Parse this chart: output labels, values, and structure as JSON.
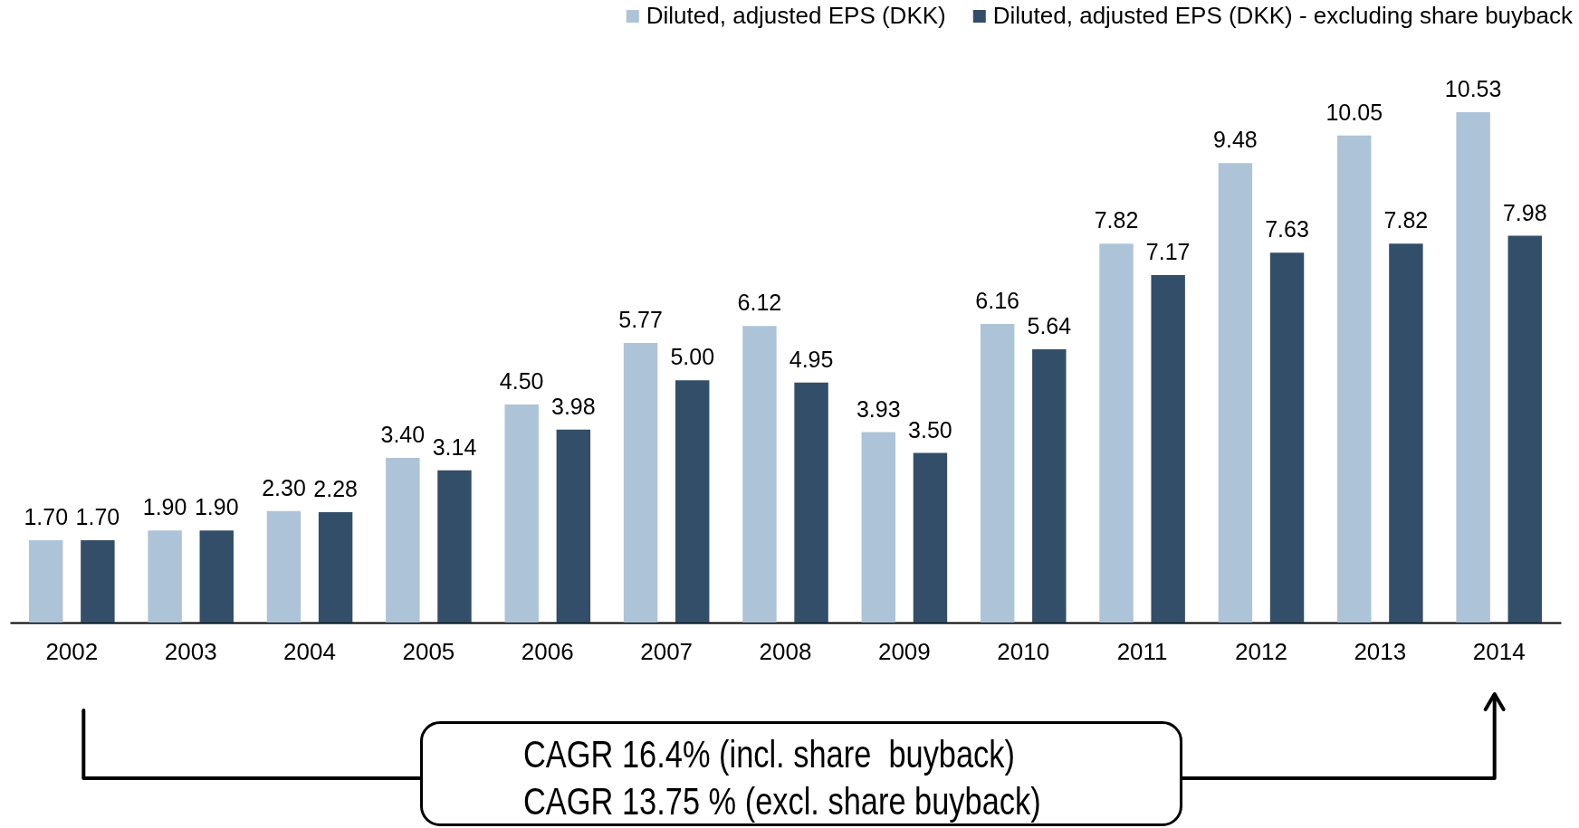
{
  "chart_data": {
    "type": "bar",
    "categories": [
      "2002",
      "2003",
      "2004",
      "2005",
      "2006",
      "2007",
      "2008",
      "2009",
      "2010",
      "2011",
      "2012",
      "2013",
      "2014"
    ],
    "series": [
      {
        "name": "Diluted, adjusted EPS (DKK)",
        "color": "#adc3d8",
        "values": [
          1.7,
          1.9,
          2.3,
          3.4,
          4.5,
          5.77,
          6.12,
          3.93,
          6.16,
          7.82,
          9.48,
          10.05,
          10.53
        ],
        "value_labels": [
          "1.70",
          "1.90",
          "2.30",
          "3.40",
          "4.50",
          "5.77",
          "6.12",
          "3.93",
          "6.16",
          "7.82",
          "9.48",
          "10.05",
          "10.53"
        ]
      },
      {
        "name": "Diluted, adjusted EPS (DKK) - excluding share buyback",
        "color": "#334e68",
        "values": [
          1.7,
          1.9,
          2.28,
          3.14,
          3.98,
          5.0,
          4.95,
          3.5,
          5.64,
          7.17,
          7.63,
          7.82,
          7.98
        ],
        "value_labels": [
          "1.70",
          "1.90",
          "2.28",
          "3.14",
          "3.98",
          "5.00",
          "4.95",
          "3.50",
          "5.64",
          "7.17",
          "7.63",
          "7.82",
          "7.98"
        ]
      }
    ],
    "legend": "top right",
    "annotations": [
      "CAGR 16.4% (incl. share  buyback)",
      "CAGR 13.75 % (excl. share buyback)"
    ]
  }
}
